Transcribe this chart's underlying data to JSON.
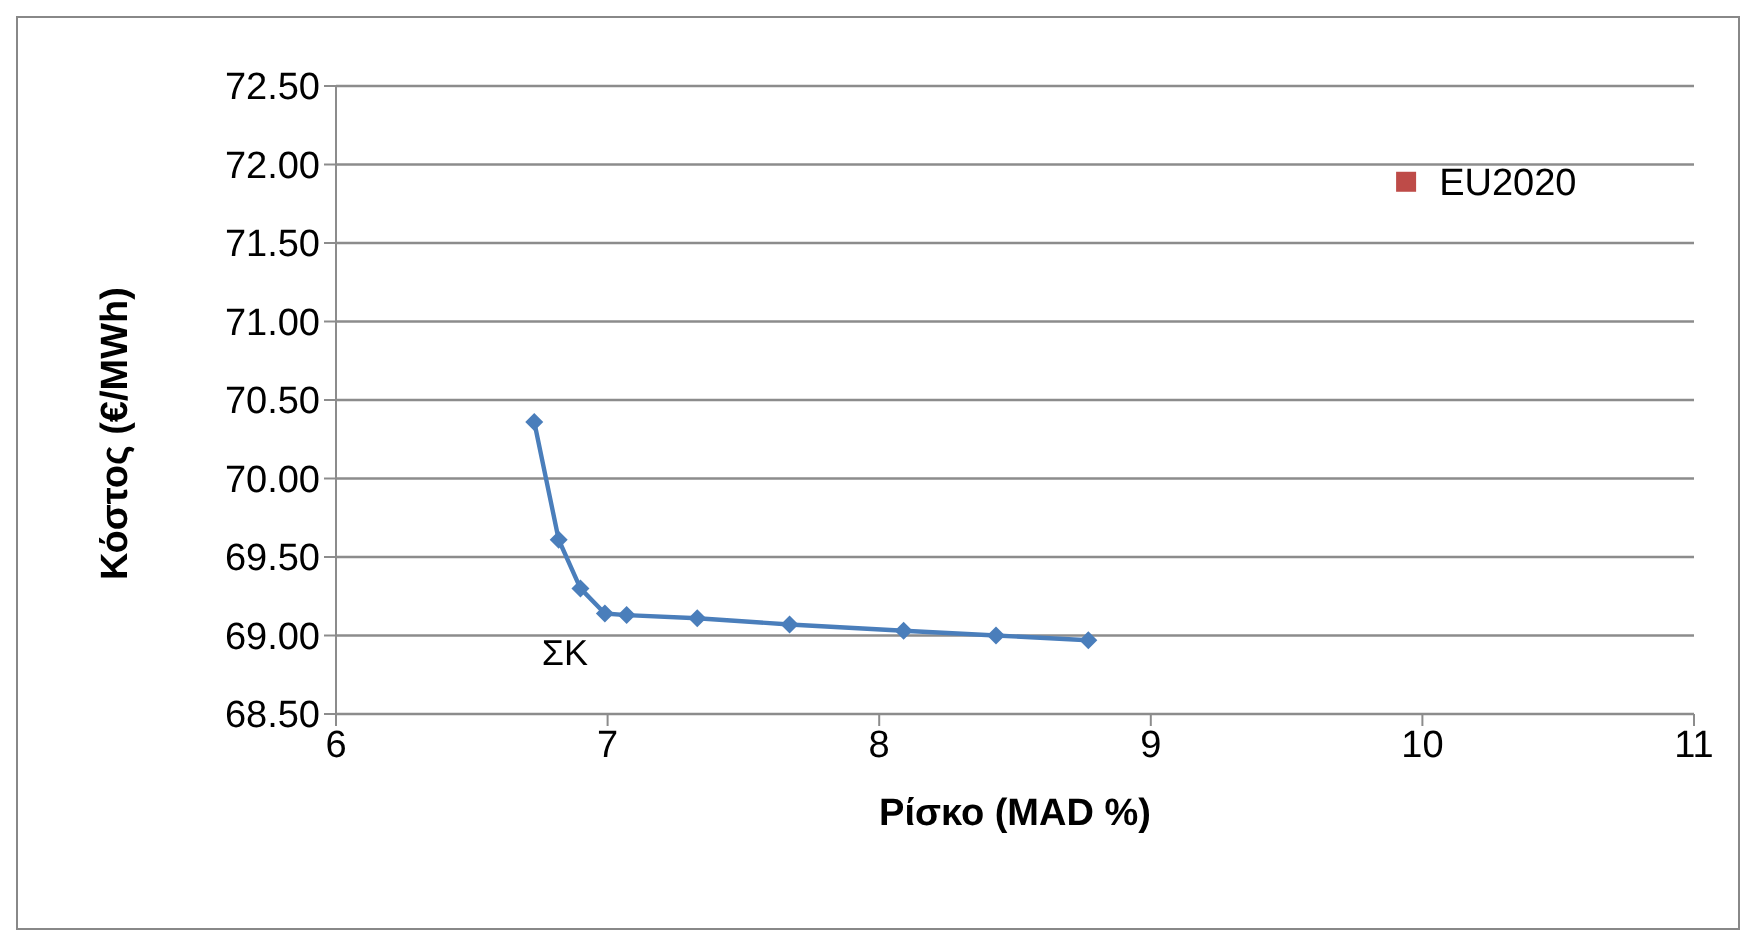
{
  "chart_data": {
    "type": "scatter",
    "xlabel": "Ρίσκο (MAD %)",
    "ylabel": "Κόστος (€/MWh)",
    "xlim": [
      6,
      11
    ],
    "xticks": [
      6,
      7,
      8,
      9,
      10,
      11
    ],
    "ylim": [
      68.5,
      72.5
    ],
    "yticks": [
      {
        "value": 68.5,
        "label": "68.50"
      },
      {
        "value": 69,
        "label": "69.00"
      },
      {
        "value": 69.5,
        "label": "69.50"
      },
      {
        "value": 70,
        "label": "70.00"
      },
      {
        "value": 70.5,
        "label": "70.50"
      },
      {
        "value": 71,
        "label": "71.00"
      },
      {
        "value": 71.5,
        "label": "71.50"
      },
      {
        "value": 72,
        "label": "72.00"
      },
      {
        "value": 72.5,
        "label": "72.50"
      }
    ],
    "grid": "y",
    "legend": false,
    "series": [
      {
        "type": "line",
        "color": "#4a7ebb",
        "marker": "diamond",
        "x": [
          6.73,
          6.82,
          6.9,
          6.99,
          7.07,
          7.33,
          7.67,
          8.09,
          8.43,
          8.77
        ],
        "values": [
          70.36,
          69.61,
          69.3,
          69.14,
          69.13,
          69.11,
          69.07,
          69.03,
          69.0,
          68.97
        ]
      },
      {
        "type": "scatter",
        "name": "EU2020",
        "color": "#be4b48",
        "marker": "square",
        "x": [
          9.94
        ],
        "values": [
          71.89
        ]
      }
    ],
    "annotations": [
      {
        "text": "ΣΚ",
        "x": 6.99,
        "y": 69.14
      }
    ]
  }
}
